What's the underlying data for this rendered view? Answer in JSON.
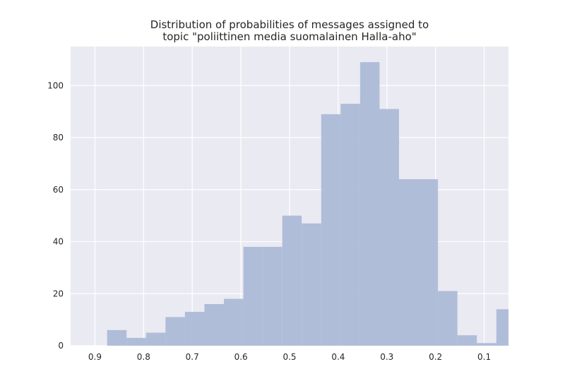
{
  "chart_data": {
    "type": "bar",
    "title_lines": [
      "Distribution of probabilities of messages assigned to",
      "topic \"poliittinen media suomalainen Halla-aho\""
    ],
    "xlabel": "",
    "ylabel": "",
    "x_reversed": true,
    "xlim": [
      0.95,
      0.05
    ],
    "ylim": [
      0,
      115
    ],
    "grid": true,
    "x_ticks": [
      0.9,
      0.8,
      0.7,
      0.6,
      0.5,
      0.4,
      0.3,
      0.2,
      0.1
    ],
    "x_tick_labels": [
      "0.9",
      "0.8",
      "0.7",
      "0.6",
      "0.5",
      "0.4",
      "0.3",
      "0.2",
      "0.1"
    ],
    "y_ticks": [
      0,
      20,
      40,
      60,
      80,
      100
    ],
    "y_tick_labels": [
      "0",
      "20",
      "40",
      "60",
      "80",
      "100"
    ],
    "bins": [
      {
        "x_start": 0.875,
        "x_end": 0.835,
        "count": 6
      },
      {
        "x_start": 0.835,
        "x_end": 0.795,
        "count": 3
      },
      {
        "x_start": 0.795,
        "x_end": 0.755,
        "count": 5
      },
      {
        "x_start": 0.755,
        "x_end": 0.715,
        "count": 11
      },
      {
        "x_start": 0.715,
        "x_end": 0.675,
        "count": 13
      },
      {
        "x_start": 0.675,
        "x_end": 0.635,
        "count": 16
      },
      {
        "x_start": 0.635,
        "x_end": 0.595,
        "count": 18
      },
      {
        "x_start": 0.595,
        "x_end": 0.555,
        "count": 38
      },
      {
        "x_start": 0.555,
        "x_end": 0.515,
        "count": 38
      },
      {
        "x_start": 0.515,
        "x_end": 0.475,
        "count": 50
      },
      {
        "x_start": 0.475,
        "x_end": 0.435,
        "count": 47
      },
      {
        "x_start": 0.435,
        "x_end": 0.395,
        "count": 89
      },
      {
        "x_start": 0.395,
        "x_end": 0.355,
        "count": 93
      },
      {
        "x_start": 0.355,
        "x_end": 0.315,
        "count": 109
      },
      {
        "x_start": 0.315,
        "x_end": 0.275,
        "count": 91
      },
      {
        "x_start": 0.275,
        "x_end": 0.235,
        "count": 64
      },
      {
        "x_start": 0.235,
        "x_end": 0.195,
        "count": 64
      },
      {
        "x_start": 0.195,
        "x_end": 0.155,
        "count": 21
      },
      {
        "x_start": 0.155,
        "x_end": 0.115,
        "count": 4
      },
      {
        "x_start": 0.115,
        "x_end": 0.075,
        "count": 1
      },
      {
        "x_start": 0.075,
        "x_end": 0.035,
        "count": 14
      }
    ],
    "colors": {
      "bar": "#aab9d7",
      "background": "#eaeaf2",
      "grid": "#ffffff",
      "text": "#262626"
    }
  }
}
